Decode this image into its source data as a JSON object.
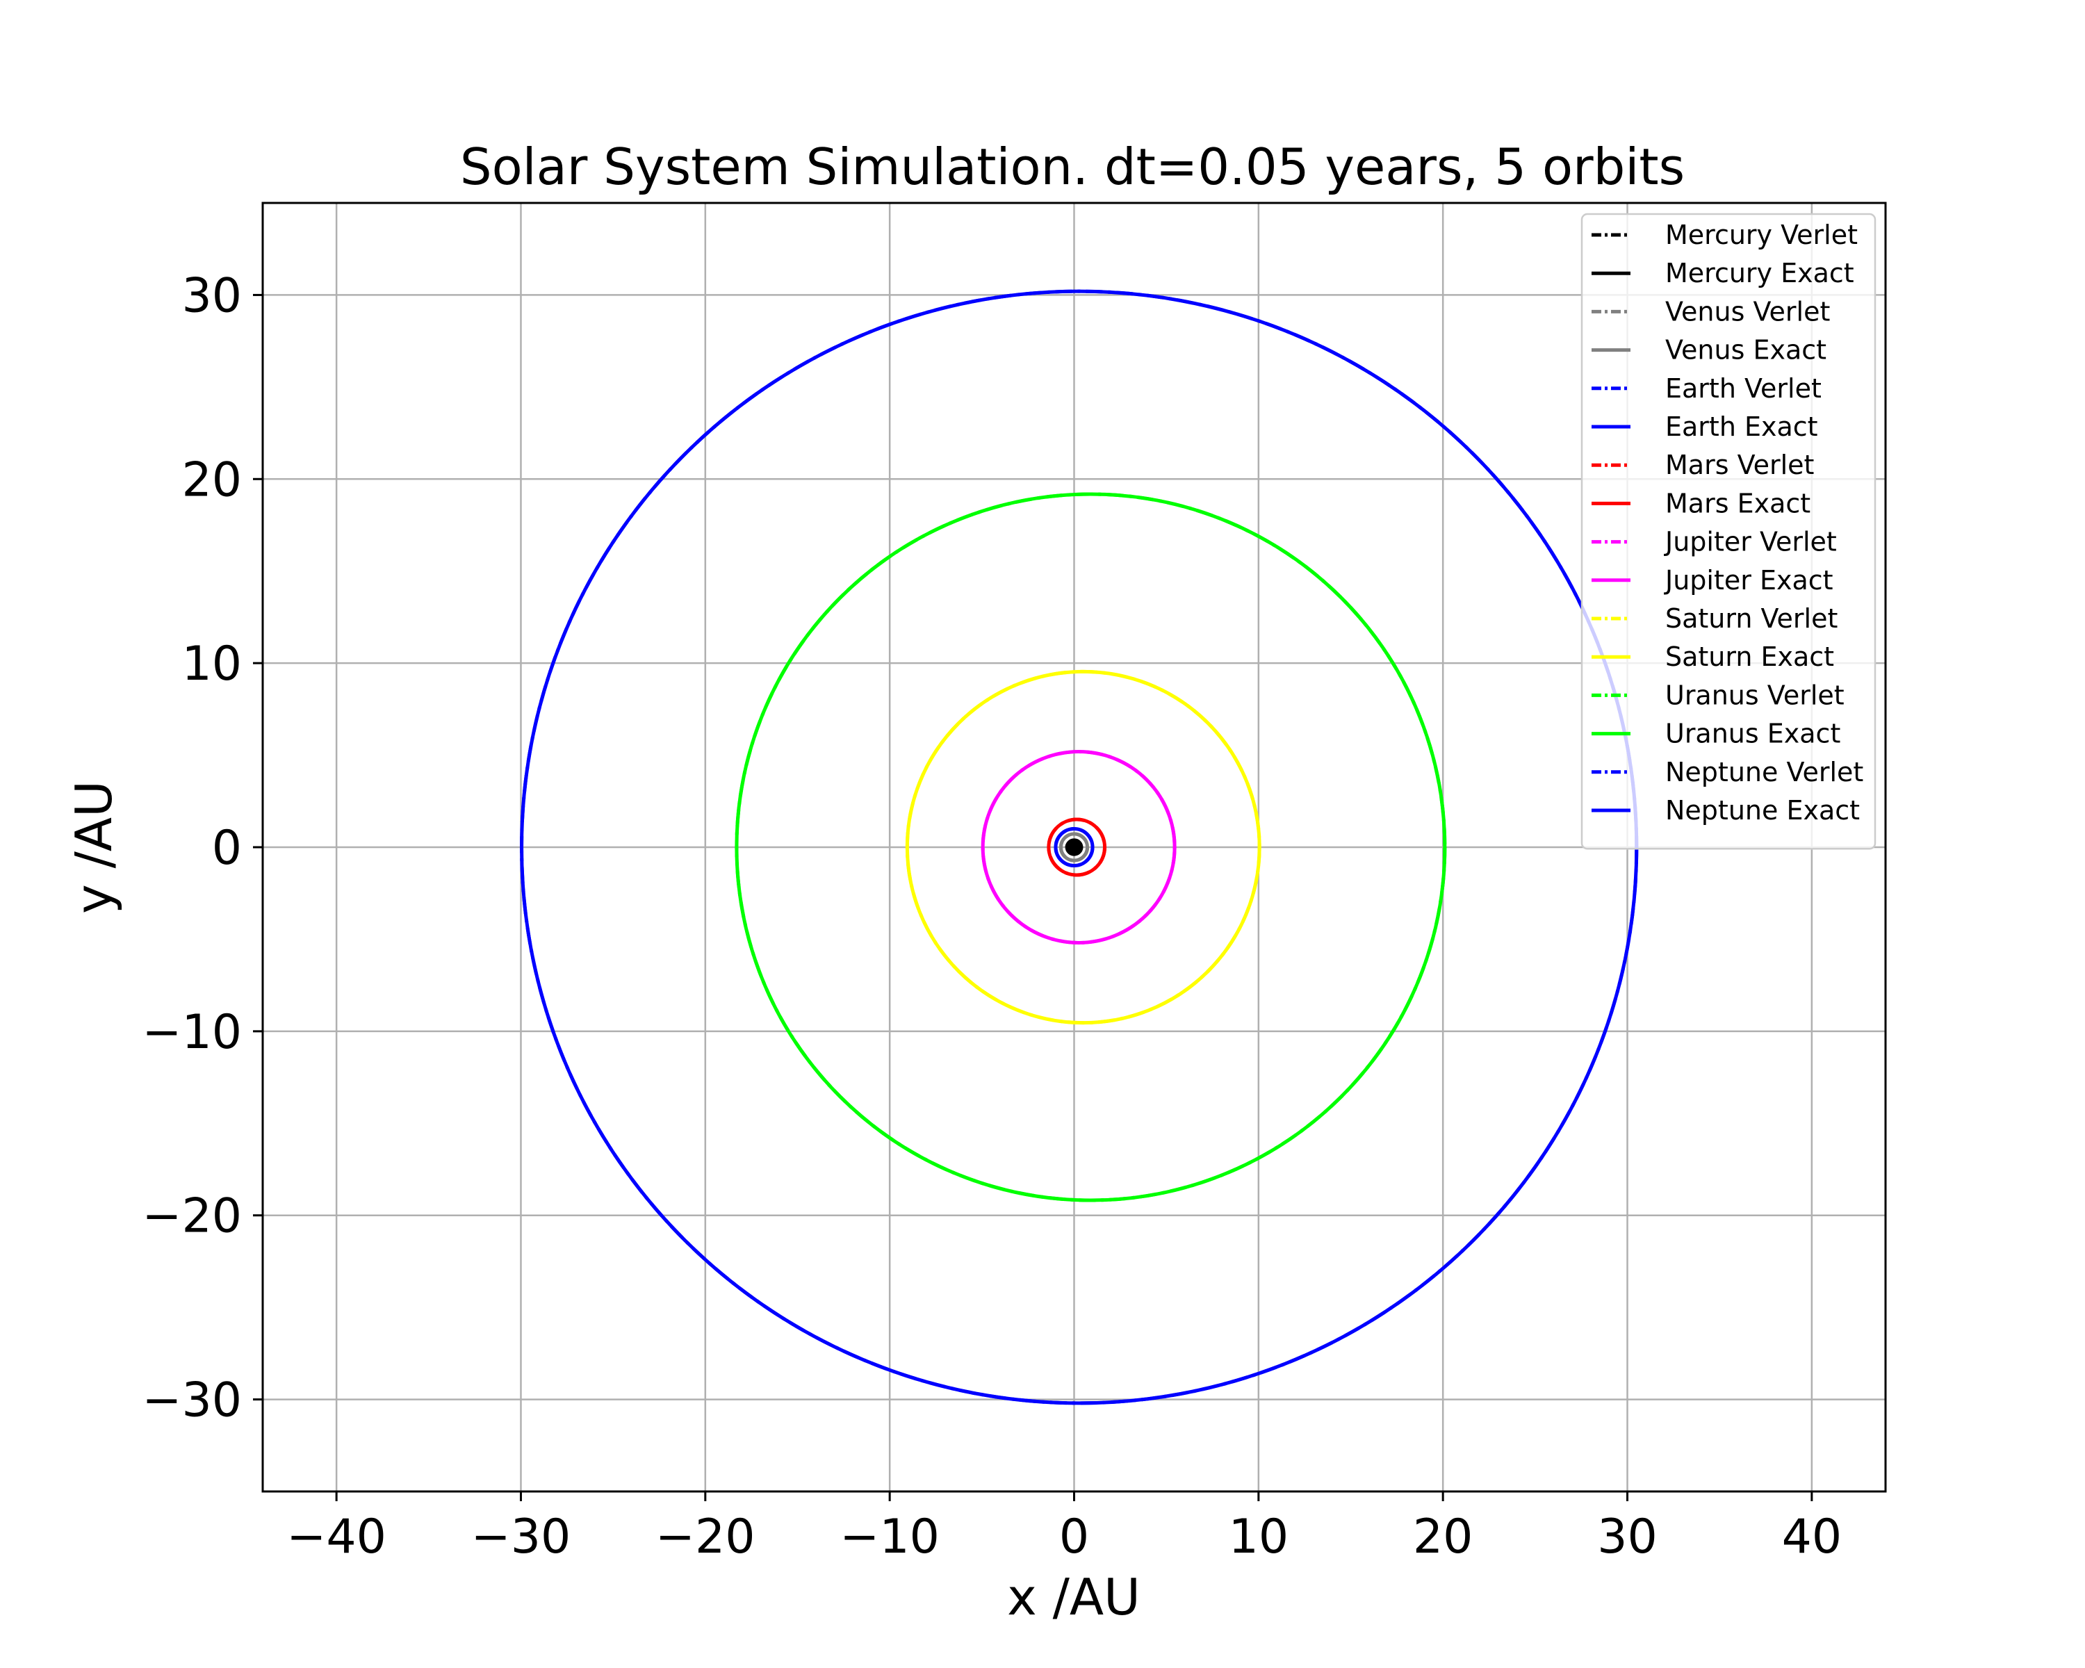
{
  "chart_data": {
    "type": "line",
    "title": "Solar System Simulation. dt=0.05 years, 5 orbits",
    "xlabel": "x /AU",
    "ylabel": "y /AU",
    "xlim": [
      -44,
      44
    ],
    "ylim": [
      -35,
      35
    ],
    "xticks": [
      -40,
      -30,
      -20,
      -10,
      0,
      10,
      20,
      30,
      40
    ],
    "yticks": [
      -30,
      -20,
      -10,
      0,
      10,
      20,
      30
    ],
    "xtick_labels": [
      "−40",
      "−30",
      "−20",
      "−10",
      "0",
      "10",
      "20",
      "30",
      "40"
    ],
    "ytick_labels": [
      "−30",
      "−20",
      "−10",
      "0",
      "10",
      "20",
      "30"
    ],
    "grid": true,
    "legend_position": "top-right",
    "series": [
      {
        "name": "Mercury Verlet",
        "color": "#000000",
        "style": "dashdot",
        "orbit": {
          "cx": 0.0,
          "cy": 0.0,
          "a": 0.39,
          "b": 0.38
        }
      },
      {
        "name": "Mercury Exact",
        "color": "#000000",
        "style": "solid",
        "orbit": {
          "cx": 0.0,
          "cy": 0.0,
          "a": 0.39,
          "b": 0.38
        }
      },
      {
        "name": "Venus Verlet",
        "color": "#808080",
        "style": "dashdot",
        "orbit": {
          "cx": 0.0,
          "cy": 0.0,
          "a": 0.72,
          "b": 0.72
        }
      },
      {
        "name": "Venus Exact",
        "color": "#808080",
        "style": "solid",
        "orbit": {
          "cx": 0.0,
          "cy": 0.0,
          "a": 0.72,
          "b": 0.72
        }
      },
      {
        "name": "Earth Verlet",
        "color": "#0000ff",
        "style": "dashdot",
        "orbit": {
          "cx": 0.0,
          "cy": 0.0,
          "a": 1.0,
          "b": 1.0
        }
      },
      {
        "name": "Earth Exact",
        "color": "#0000ff",
        "style": "solid",
        "orbit": {
          "cx": 0.0,
          "cy": 0.0,
          "a": 1.0,
          "b": 1.0
        }
      },
      {
        "name": "Mars Verlet",
        "color": "#ff0000",
        "style": "dashdot",
        "orbit": {
          "cx": 0.14,
          "cy": 0.0,
          "a": 1.52,
          "b": 1.51
        }
      },
      {
        "name": "Mars Exact",
        "color": "#ff0000",
        "style": "solid",
        "orbit": {
          "cx": 0.14,
          "cy": 0.0,
          "a": 1.52,
          "b": 1.51
        }
      },
      {
        "name": "Jupiter Verlet",
        "color": "#ff00ff",
        "style": "dashdot",
        "orbit": {
          "cx": 0.25,
          "cy": 0.0,
          "a": 5.2,
          "b": 5.19
        }
      },
      {
        "name": "Jupiter Exact",
        "color": "#ff00ff",
        "style": "solid",
        "orbit": {
          "cx": 0.25,
          "cy": 0.0,
          "a": 5.2,
          "b": 5.19
        }
      },
      {
        "name": "Saturn Verlet",
        "color": "#ffff00",
        "style": "dashdot",
        "orbit": {
          "cx": 0.5,
          "cy": 0.0,
          "a": 9.55,
          "b": 9.54
        }
      },
      {
        "name": "Saturn Exact",
        "color": "#ffff00",
        "style": "solid",
        "orbit": {
          "cx": 0.5,
          "cy": 0.0,
          "a": 9.55,
          "b": 9.54
        }
      },
      {
        "name": "Uranus Verlet",
        "color": "#00ff00",
        "style": "dashdot",
        "orbit": {
          "cx": 0.9,
          "cy": 0.0,
          "a": 19.2,
          "b": 19.18
        }
      },
      {
        "name": "Uranus Exact",
        "color": "#00ff00",
        "style": "solid",
        "orbit": {
          "cx": 0.9,
          "cy": 0.0,
          "a": 19.2,
          "b": 19.18
        }
      },
      {
        "name": "Neptune Verlet",
        "color": "#0000ff",
        "style": "dashdot",
        "orbit": {
          "cx": 0.27,
          "cy": 0.0,
          "a": 30.23,
          "b": 30.2
        }
      },
      {
        "name": "Neptune Exact",
        "color": "#0000ff",
        "style": "solid",
        "orbit": {
          "cx": 0.27,
          "cy": 0.0,
          "a": 30.23,
          "b": 30.2
        }
      }
    ],
    "sun": {
      "x": 0,
      "y": 0,
      "color": "#000000"
    }
  }
}
